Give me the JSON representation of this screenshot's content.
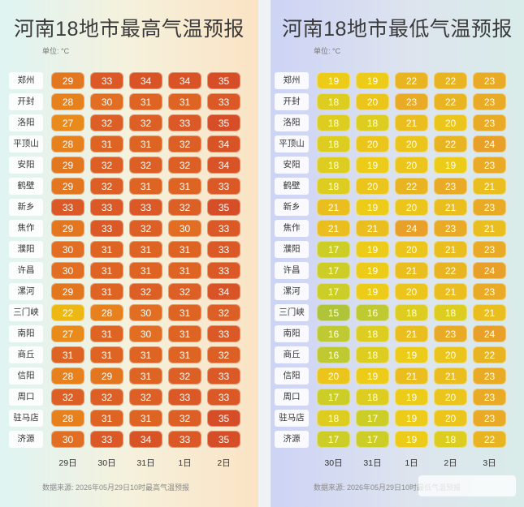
{
  "left": {
    "title": "河南18地市最高气温预报",
    "unit": "单位: °C",
    "dates": [
      "29日",
      "30日",
      "31日",
      "1日",
      "2日"
    ],
    "source": "数据来源: 2026年05月29日10时最高气温预报"
  },
  "right": {
    "title": "河南18地市最低气温预报",
    "unit": "单位: °C",
    "dates": [
      "30日",
      "31日",
      "1日",
      "2日",
      "3日"
    ],
    "source": "数据来源: 2026年05月29日10时最低气温预报"
  },
  "cities": [
    "郑州",
    "开封",
    "洛阳",
    "平顶山",
    "安阳",
    "鹤壁",
    "新乡",
    "焦作",
    "濮阳",
    "许昌",
    "漯河",
    "三门峡",
    "南阳",
    "商丘",
    "信阳",
    "周口",
    "驻马店",
    "济源"
  ],
  "chart_data": [
    {
      "type": "heatmap",
      "title": "河南18地市最高气温预报",
      "x": [
        "29日",
        "30日",
        "31日",
        "1日",
        "2日"
      ],
      "y": [
        "郑州",
        "开封",
        "洛阳",
        "平顶山",
        "安阳",
        "鹤壁",
        "新乡",
        "焦作",
        "濮阳",
        "许昌",
        "漯河",
        "三门峡",
        "南阳",
        "商丘",
        "信阳",
        "周口",
        "驻马店",
        "济源"
      ],
      "values": [
        [
          29,
          33,
          34,
          34,
          35
        ],
        [
          28,
          30,
          31,
          31,
          33
        ],
        [
          27,
          32,
          32,
          33,
          35
        ],
        [
          28,
          31,
          31,
          32,
          34
        ],
        [
          29,
          32,
          32,
          32,
          34
        ],
        [
          29,
          32,
          31,
          31,
          33
        ],
        [
          33,
          33,
          33,
          32,
          35
        ],
        [
          29,
          33,
          32,
          30,
          33
        ],
        [
          30,
          31,
          31,
          31,
          33
        ],
        [
          30,
          31,
          31,
          31,
          33
        ],
        [
          29,
          31,
          32,
          32,
          34
        ],
        [
          22,
          28,
          30,
          31,
          32
        ],
        [
          27,
          31,
          30,
          31,
          33
        ],
        [
          31,
          31,
          31,
          31,
          32
        ],
        [
          28,
          29,
          31,
          32,
          33
        ],
        [
          32,
          32,
          32,
          33,
          33
        ],
        [
          28,
          31,
          31,
          32,
          35
        ],
        [
          30,
          33,
          34,
          33,
          35
        ]
      ],
      "unit": "°C"
    },
    {
      "type": "heatmap",
      "title": "河南18地市最低气温预报",
      "x": [
        "30日",
        "31日",
        "1日",
        "2日",
        "3日"
      ],
      "y": [
        "郑州",
        "开封",
        "洛阳",
        "平顶山",
        "安阳",
        "鹤壁",
        "新乡",
        "焦作",
        "濮阳",
        "许昌",
        "漯河",
        "三门峡",
        "南阳",
        "商丘",
        "信阳",
        "周口",
        "驻马店",
        "济源"
      ],
      "values": [
        [
          19,
          19,
          22,
          22,
          23
        ],
        [
          18,
          20,
          23,
          22,
          23
        ],
        [
          18,
          18,
          21,
          20,
          23
        ],
        [
          18,
          20,
          20,
          22,
          24
        ],
        [
          18,
          19,
          20,
          19,
          23
        ],
        [
          18,
          20,
          22,
          23,
          21
        ],
        [
          21,
          19,
          20,
          21,
          23
        ],
        [
          21,
          21,
          24,
          23,
          21
        ],
        [
          17,
          19,
          20,
          21,
          23
        ],
        [
          17,
          19,
          21,
          22,
          24
        ],
        [
          17,
          19,
          20,
          21,
          23
        ],
        [
          15,
          16,
          18,
          18,
          21
        ],
        [
          16,
          18,
          21,
          23,
          24
        ],
        [
          16,
          18,
          19,
          20,
          22
        ],
        [
          20,
          19,
          21,
          21,
          23
        ],
        [
          17,
          18,
          19,
          20,
          23
        ],
        [
          18,
          17,
          19,
          20,
          23
        ],
        [
          17,
          17,
          19,
          18,
          22
        ]
      ],
      "unit": "°C"
    }
  ]
}
